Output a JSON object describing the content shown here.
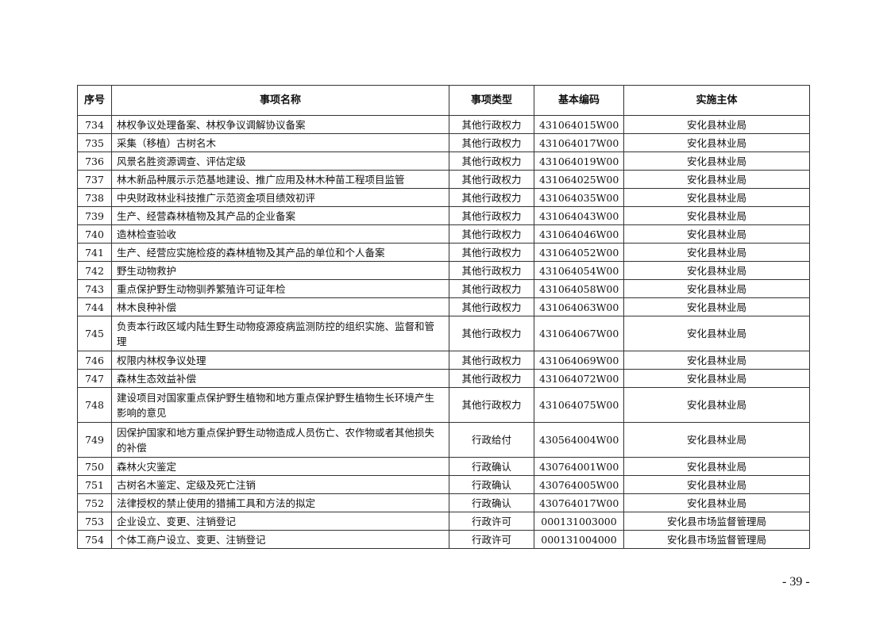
{
  "table": {
    "headers": [
      "序号",
      "事项名称",
      "事项类型",
      "基本编码",
      "实施主体"
    ],
    "rows": [
      {
        "no": "734",
        "name": "林权争议处理备案、林权争议调解协议备案",
        "type": "其他行政权力",
        "code": "431064015W00",
        "agency": "安化县林业局"
      },
      {
        "no": "735",
        "name": "采集（移植）古树名木",
        "type": "其他行政权力",
        "code": "431064017W00",
        "agency": "安化县林业局"
      },
      {
        "no": "736",
        "name": "风景名胜资源调查、评估定级",
        "type": "其他行政权力",
        "code": "431064019W00",
        "agency": "安化县林业局"
      },
      {
        "no": "737",
        "name": "林木新品种展示示范基地建设、推广应用及林木种苗工程项目监管",
        "type": "其他行政权力",
        "code": "431064025W00",
        "agency": "安化县林业局"
      },
      {
        "no": "738",
        "name": "中央财政林业科技推广示范资金项目绩效初评",
        "type": "其他行政权力",
        "code": "431064035W00",
        "agency": "安化县林业局"
      },
      {
        "no": "739",
        "name": "生产、经营森林植物及其产品的企业备案",
        "type": "其他行政权力",
        "code": "431064043W00",
        "agency": "安化县林业局"
      },
      {
        "no": "740",
        "name": "造林检查验收",
        "type": "其他行政权力",
        "code": "431064046W00",
        "agency": "安化县林业局"
      },
      {
        "no": "741",
        "name": "生产、经营应实施检疫的森林植物及其产品的单位和个人备案",
        "type": "其他行政权力",
        "code": "431064052W00",
        "agency": "安化县林业局"
      },
      {
        "no": "742",
        "name": "野生动物救护",
        "type": "其他行政权力",
        "code": "431064054W00",
        "agency": "安化县林业局"
      },
      {
        "no": "743",
        "name": "重点保护野生动物驯养繁殖许可证年检",
        "type": "其他行政权力",
        "code": "431064058W00",
        "agency": "安化县林业局"
      },
      {
        "no": "744",
        "name": "林木良种补偿",
        "type": "其他行政权力",
        "code": "431064063W00",
        "agency": "安化县林业局"
      },
      {
        "no": "745",
        "name": "负责本行政区域内陆生野生动物疫源疫病监测防控的组织实施、监督和管理",
        "type": "其他行政权力",
        "code": "431064067W00",
        "agency": "安化县林业局"
      },
      {
        "no": "746",
        "name": "权限内林权争议处理",
        "type": "其他行政权力",
        "code": "431064069W00",
        "agency": "安化县林业局"
      },
      {
        "no": "747",
        "name": "森林生态效益补偿",
        "type": "其他行政权力",
        "code": "431064072W00",
        "agency": "安化县林业局"
      },
      {
        "no": "748",
        "name": "建设项目对国家重点保护野生植物和地方重点保护野生植物生长环境产生影响的意见",
        "type": "其他行政权力",
        "code": "431064075W00",
        "agency": "安化县林业局"
      },
      {
        "no": "749",
        "name": "因保护国家和地方重点保护野生动物造成人员伤亡、农作物或者其他损失的补偿",
        "type": "行政给付",
        "code": "430564004W00",
        "agency": "安化县林业局"
      },
      {
        "no": "750",
        "name": "森林火灾鉴定",
        "type": "行政确认",
        "code": "430764001W00",
        "agency": "安化县林业局"
      },
      {
        "no": "751",
        "name": "古树名木鉴定、定级及死亡注销",
        "type": "行政确认",
        "code": "430764005W00",
        "agency": "安化县林业局"
      },
      {
        "no": "752",
        "name": "法律授权的禁止使用的猎捕工具和方法的拟定",
        "type": "行政确认",
        "code": "430764017W00",
        "agency": "安化县林业局"
      },
      {
        "no": "753",
        "name": "企业设立、变更、注销登记",
        "type": "行政许可",
        "code": "000131003000",
        "agency": "安化县市场监督管理局"
      },
      {
        "no": "754",
        "name": "个体工商户设立、变更、注销登记",
        "type": "行政许可",
        "code": "000131004000",
        "agency": "安化县市场监督管理局"
      }
    ]
  },
  "page_number": "- 39 -"
}
